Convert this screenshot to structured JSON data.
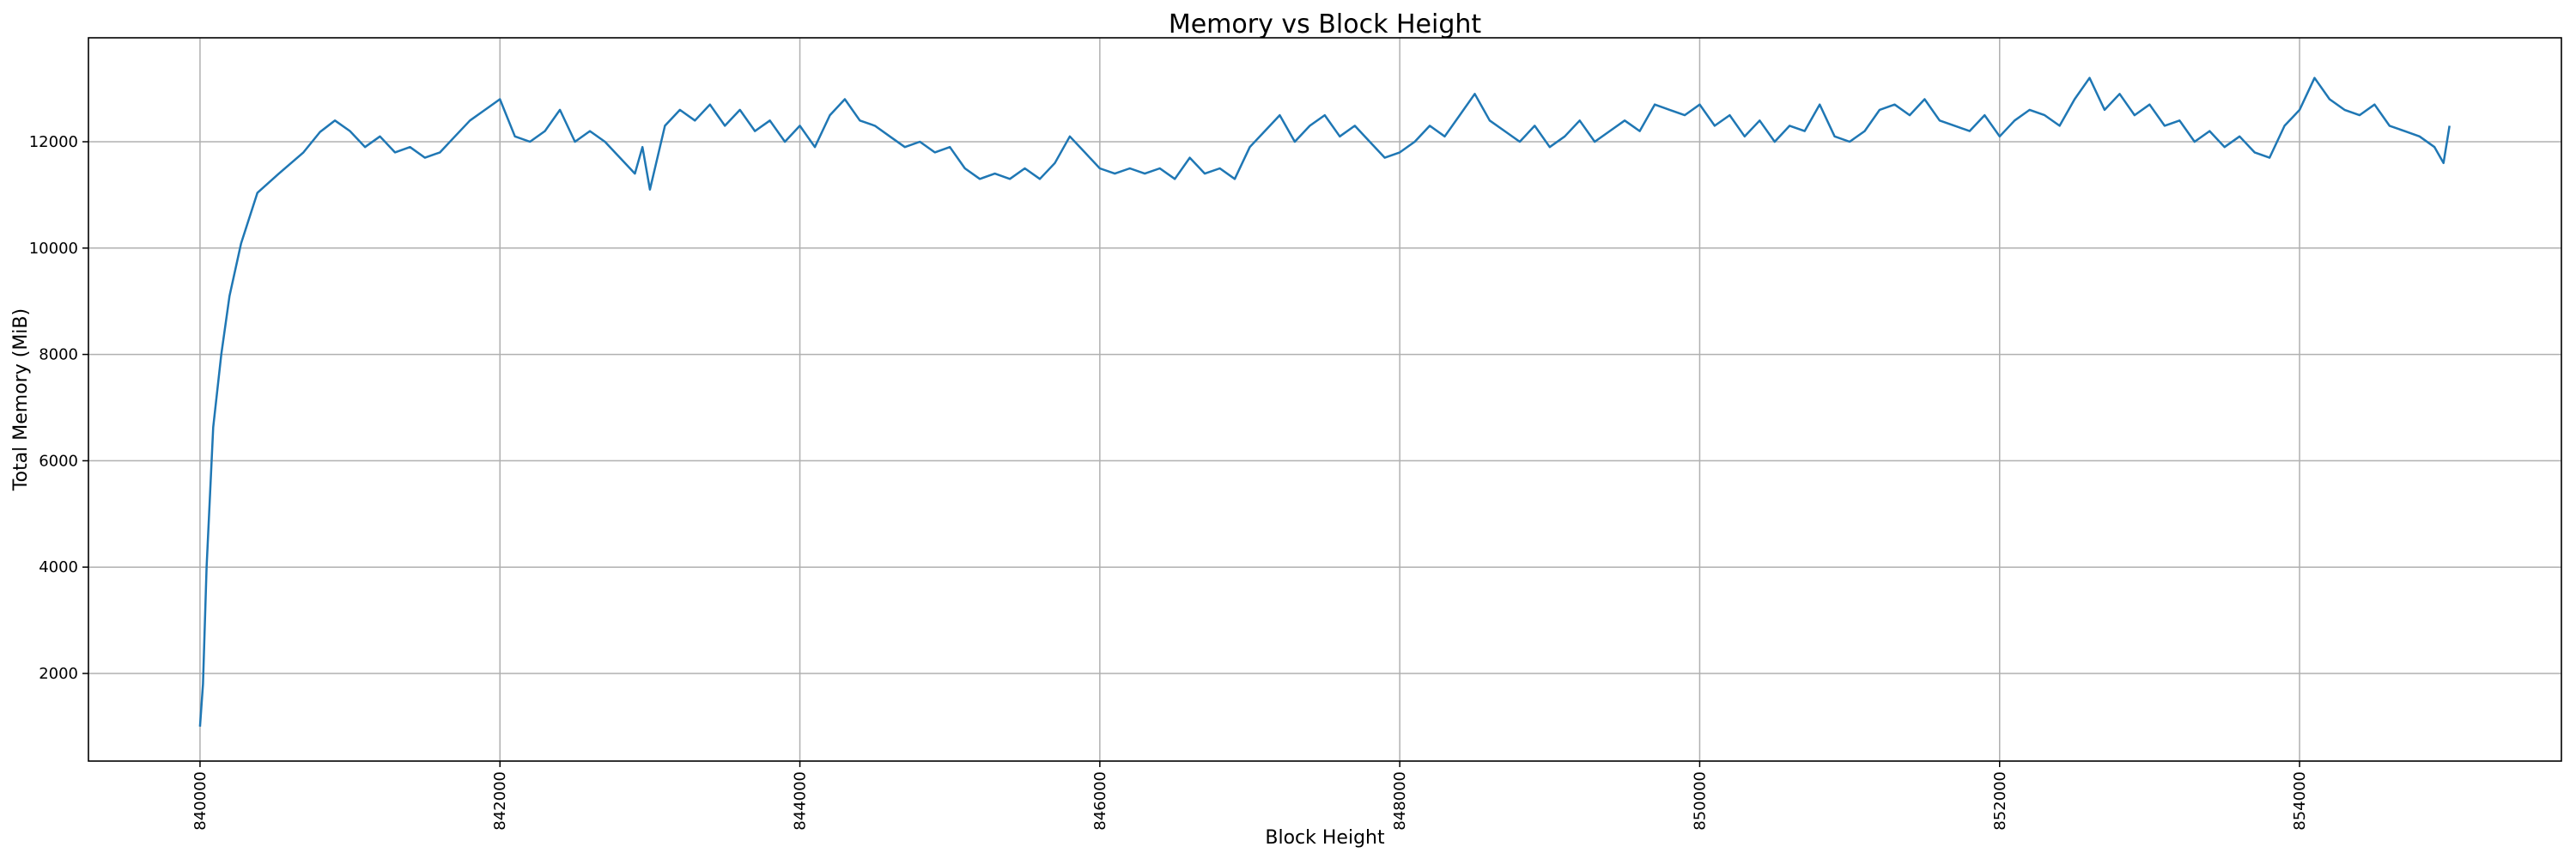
{
  "chart_data": {
    "type": "line",
    "title": "Memory vs Block Height",
    "xlabel": "Block Height",
    "ylabel": "Total Memory (MiB)",
    "xlim": [
      839256,
      855746
    ],
    "ylim": [
      352,
      13955
    ],
    "xticks": [
      840000,
      842000,
      844000,
      846000,
      848000,
      850000,
      852000,
      854000
    ],
    "yticks": [
      2000,
      4000,
      6000,
      8000,
      10000,
      12000
    ],
    "grid": true,
    "line_color": "#1f77b4",
    "points": [
      [
        840000,
        1000
      ],
      [
        840020,
        1800
      ],
      [
        840044,
        4000
      ],
      [
        840088,
        6630
      ],
      [
        840142,
        8000
      ],
      [
        840197,
        9100
      ],
      [
        840274,
        10090
      ],
      [
        840383,
        11040
      ],
      [
        840526,
        11400
      ],
      [
        840690,
        11800
      ],
      [
        840800,
        12185
      ],
      [
        840900,
        12400
      ],
      [
        841000,
        12200
      ],
      [
        841100,
        11900
      ],
      [
        841200,
        12100
      ],
      [
        841300,
        11800
      ],
      [
        841400,
        11900
      ],
      [
        841500,
        11700
      ],
      [
        841600,
        11800
      ],
      [
        841700,
        12100
      ],
      [
        841800,
        12400
      ],
      [
        841900,
        12600
      ],
      [
        842000,
        12800
      ],
      [
        842100,
        12100
      ],
      [
        842200,
        12000
      ],
      [
        842300,
        12200
      ],
      [
        842400,
        12600
      ],
      [
        842500,
        12000
      ],
      [
        842600,
        12200
      ],
      [
        842700,
        12000
      ],
      [
        842800,
        11700
      ],
      [
        842900,
        11400
      ],
      [
        842950,
        11900
      ],
      [
        843000,
        11100
      ],
      [
        843100,
        12300
      ],
      [
        843200,
        12600
      ],
      [
        843300,
        12400
      ],
      [
        843400,
        12700
      ],
      [
        843500,
        12300
      ],
      [
        843600,
        12600
      ],
      [
        843700,
        12200
      ],
      [
        843800,
        12400
      ],
      [
        843900,
        12000
      ],
      [
        844000,
        12300
      ],
      [
        844100,
        11900
      ],
      [
        844200,
        12500
      ],
      [
        844300,
        12800
      ],
      [
        844400,
        12400
      ],
      [
        844500,
        12300
      ],
      [
        844600,
        12100
      ],
      [
        844700,
        11900
      ],
      [
        844800,
        12000
      ],
      [
        844900,
        11800
      ],
      [
        845000,
        11900
      ],
      [
        845100,
        11500
      ],
      [
        845200,
        11300
      ],
      [
        845300,
        11400
      ],
      [
        845400,
        11300
      ],
      [
        845500,
        11500
      ],
      [
        845600,
        11300
      ],
      [
        845700,
        11600
      ],
      [
        845800,
        12100
      ],
      [
        845900,
        11800
      ],
      [
        846000,
        11500
      ],
      [
        846100,
        11400
      ],
      [
        846200,
        11500
      ],
      [
        846300,
        11400
      ],
      [
        846400,
        11500
      ],
      [
        846500,
        11300
      ],
      [
        846600,
        11700
      ],
      [
        846700,
        11400
      ],
      [
        846800,
        11500
      ],
      [
        846900,
        11300
      ],
      [
        847000,
        11900
      ],
      [
        847100,
        12200
      ],
      [
        847200,
        12500
      ],
      [
        847300,
        12000
      ],
      [
        847400,
        12300
      ],
      [
        847500,
        12500
      ],
      [
        847600,
        12100
      ],
      [
        847700,
        12300
      ],
      [
        847800,
        12000
      ],
      [
        847900,
        11700
      ],
      [
        848000,
        11800
      ],
      [
        848100,
        12000
      ],
      [
        848200,
        12300
      ],
      [
        848300,
        12100
      ],
      [
        848400,
        12500
      ],
      [
        848500,
        12900
      ],
      [
        848600,
        12400
      ],
      [
        848700,
        12200
      ],
      [
        848800,
        12000
      ],
      [
        848900,
        12300
      ],
      [
        849000,
        11900
      ],
      [
        849100,
        12100
      ],
      [
        849200,
        12400
      ],
      [
        849300,
        12000
      ],
      [
        849400,
        12200
      ],
      [
        849500,
        12400
      ],
      [
        849600,
        12200
      ],
      [
        849700,
        12700
      ],
      [
        849800,
        12600
      ],
      [
        849900,
        12500
      ],
      [
        850000,
        12700
      ],
      [
        850100,
        12300
      ],
      [
        850200,
        12500
      ],
      [
        850300,
        12100
      ],
      [
        850400,
        12400
      ],
      [
        850500,
        12000
      ],
      [
        850600,
        12300
      ],
      [
        850700,
        12200
      ],
      [
        850800,
        12700
      ],
      [
        850900,
        12100
      ],
      [
        851000,
        12000
      ],
      [
        851100,
        12200
      ],
      [
        851200,
        12600
      ],
      [
        851300,
        12700
      ],
      [
        851400,
        12500
      ],
      [
        851500,
        12800
      ],
      [
        851600,
        12400
      ],
      [
        851700,
        12300
      ],
      [
        851800,
        12200
      ],
      [
        851900,
        12500
      ],
      [
        852000,
        12100
      ],
      [
        852100,
        12400
      ],
      [
        852200,
        12600
      ],
      [
        852300,
        12500
      ],
      [
        852400,
        12300
      ],
      [
        852500,
        12800
      ],
      [
        852600,
        13200
      ],
      [
        852700,
        12600
      ],
      [
        852800,
        12900
      ],
      [
        852900,
        12500
      ],
      [
        853000,
        12700
      ],
      [
        853100,
        12300
      ],
      [
        853200,
        12400
      ],
      [
        853300,
        12000
      ],
      [
        853400,
        12200
      ],
      [
        853500,
        11900
      ],
      [
        853600,
        12100
      ],
      [
        853700,
        11800
      ],
      [
        853800,
        11700
      ],
      [
        853900,
        12300
      ],
      [
        854000,
        12600
      ],
      [
        854100,
        13200
      ],
      [
        854200,
        12800
      ],
      [
        854300,
        12600
      ],
      [
        854400,
        12500
      ],
      [
        854500,
        12700
      ],
      [
        854600,
        12300
      ],
      [
        854700,
        12200
      ],
      [
        854800,
        12100
      ],
      [
        854900,
        11900
      ],
      [
        854960,
        11600
      ],
      [
        855000,
        12300
      ]
    ]
  }
}
